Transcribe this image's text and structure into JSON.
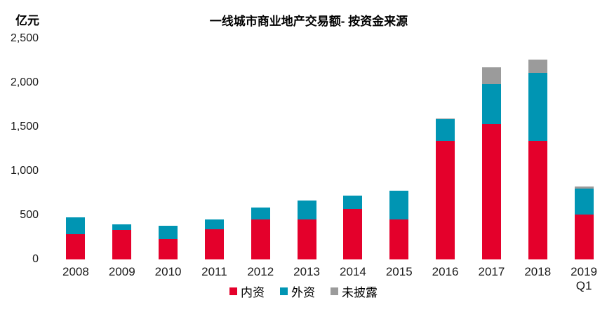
{
  "title": "一线城市商业地产交易额- 按资金来源",
  "unit_label": "亿元",
  "chart_data": {
    "type": "bar",
    "stacked": true,
    "title": "一线城市商业地产交易额- 按资金来源",
    "ylabel": "亿元",
    "xlabel": "",
    "grid": false,
    "legend_position": "bottom",
    "ylim": [
      0,
      2500
    ],
    "yticks": [
      0,
      500,
      1000,
      1500,
      2000,
      2500
    ],
    "ytick_labels": [
      "0",
      "500",
      "1,000",
      "1,500",
      "2,000",
      "2,500"
    ],
    "categories": [
      "2008",
      "2009",
      "2010",
      "2011",
      "2012",
      "2013",
      "2014",
      "2015",
      "2016",
      "2017",
      "2018",
      "2019\nQ1"
    ],
    "series": [
      {
        "name": "内资",
        "color": "#E4002B",
        "values": [
          285,
          330,
          230,
          340,
          450,
          455,
          575,
          455,
          1345,
          1535,
          1345,
          510
        ]
      },
      {
        "name": "外资",
        "color": "#0095B3",
        "values": [
          195,
          65,
          155,
          110,
          140,
          210,
          150,
          325,
          240,
          450,
          770,
          290
        ]
      },
      {
        "name": "未披露",
        "color": "#9B9B9B",
        "values": [
          0,
          0,
          0,
          0,
          0,
          0,
          0,
          0,
          10,
          190,
          145,
          25
        ]
      }
    ]
  }
}
